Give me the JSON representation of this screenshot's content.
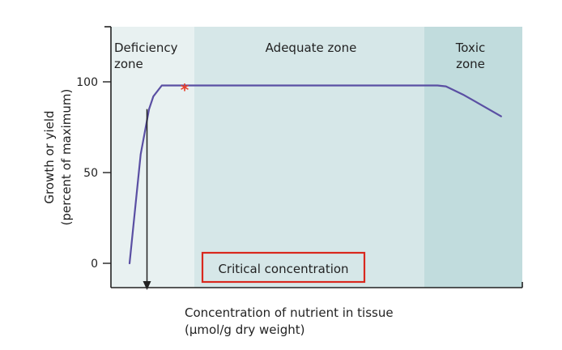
{
  "chart_data": {
    "type": "line",
    "title": "",
    "xlabel_lines": [
      "Concentration of nutrient in tissue",
      "(µmol/g dry weight)"
    ],
    "ylabel_lines": [
      "Growth or yield",
      "(percent of maximum)"
    ],
    "ylim": [
      0,
      100
    ],
    "yticks": [
      "100",
      "50",
      "0"
    ],
    "zones": [
      {
        "label_lines": [
          "Deficiency",
          "zone"
        ],
        "color": "#e8f1f1"
      },
      {
        "label_lines": [
          "Adequate zone"
        ],
        "color": "#d6e7e8"
      },
      {
        "label_lines": [
          "Toxic",
          "zone"
        ],
        "color": "#c1dcdd"
      }
    ],
    "series": [
      {
        "color": "#5a4fa3",
        "x": [
          0.44,
          0.7,
          0.9,
          1.0,
          1.2,
          3.5,
          7.7,
          7.9,
          8.3,
          8.6,
          9.2
        ],
        "y": [
          0,
          60,
          85,
          92,
          98,
          98,
          98,
          97.5,
          93,
          89,
          81
        ]
      }
    ],
    "xlim": [
      0,
      9.7
    ],
    "annotations": {
      "marker": "*",
      "marker_color": "#e8402c",
      "critical_label": "Critical concentration",
      "critical_x": 0.85,
      "box_color": "#d9281e"
    }
  }
}
